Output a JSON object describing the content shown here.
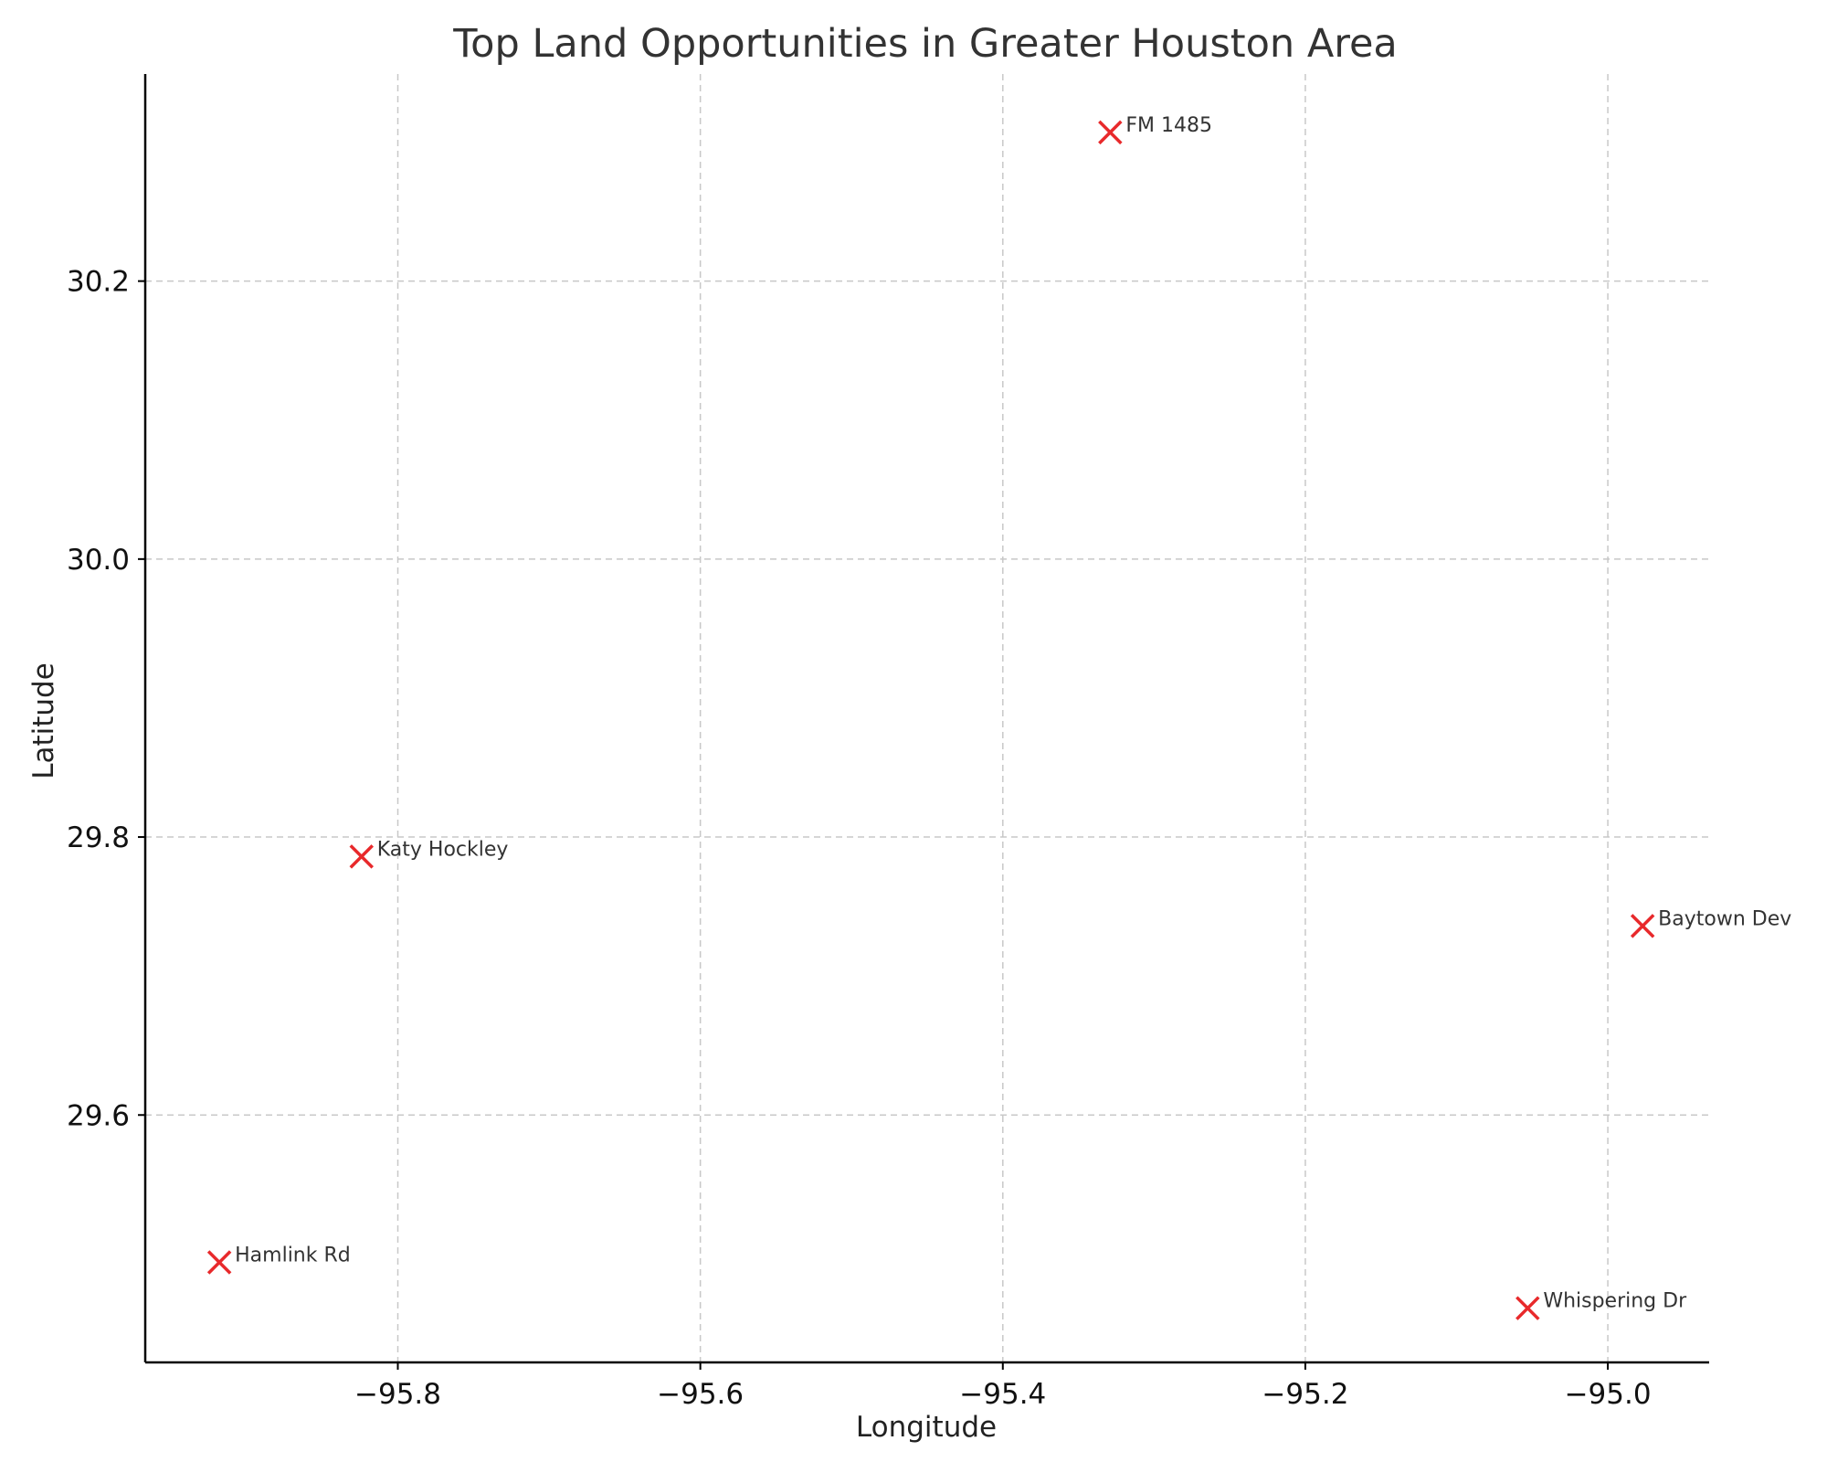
{
  "chart_data": {
    "type": "scatter",
    "title": "Top Land Opportunities in Greater Houston Area",
    "xlabel": "Longitude",
    "ylabel": "Latitude",
    "xlim": [
      -95.967,
      -94.933
    ],
    "ylim": [
      29.422,
      30.349
    ],
    "xticks": [
      {
        "value": -95.8,
        "label": "−95.8"
      },
      {
        "value": -95.6,
        "label": "−95.6"
      },
      {
        "value": -95.4,
        "label": "−95.4"
      },
      {
        "value": -95.2,
        "label": "−95.2"
      },
      {
        "value": -95.0,
        "label": "−95.0"
      }
    ],
    "yticks": [
      {
        "value": 29.6,
        "label": "29.6"
      },
      {
        "value": 29.8,
        "label": "29.8"
      },
      {
        "value": 30.0,
        "label": "30.0"
      },
      {
        "value": 30.2,
        "label": "30.2"
      }
    ],
    "grid": true,
    "marker": "x",
    "marker_color": "#e8292b",
    "points": [
      {
        "label": "FM 1485",
        "x": -95.329,
        "y": 30.307
      },
      {
        "label": "Katy Hockley",
        "x": -95.824,
        "y": 29.786
      },
      {
        "label": "Baytown Dev",
        "x": -94.977,
        "y": 29.736
      },
      {
        "label": "Hamlink Rd",
        "x": -95.918,
        "y": 29.494
      },
      {
        "label": "Whispering Dr",
        "x": -95.053,
        "y": 29.461
      }
    ]
  }
}
